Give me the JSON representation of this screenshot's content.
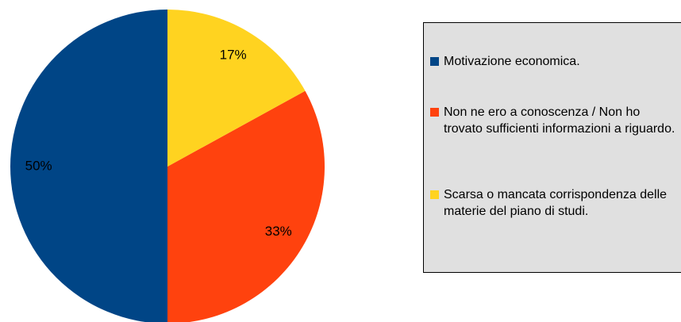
{
  "chart_data": {
    "type": "pie",
    "categories": [
      "Motivazione economica.",
      "Non ne ero a  conoscenza / Non ho trovato sufficienti informazioni a riguardo.",
      "Scarsa o mancata corrispondenza delle materie del piano di studi."
    ],
    "values": [
      50,
      33,
      17
    ],
    "value_labels": [
      "50%",
      "33%",
      "17%"
    ],
    "colors": [
      "#004586",
      "#ff420e",
      "#ffd320"
    ],
    "legend": "right"
  }
}
